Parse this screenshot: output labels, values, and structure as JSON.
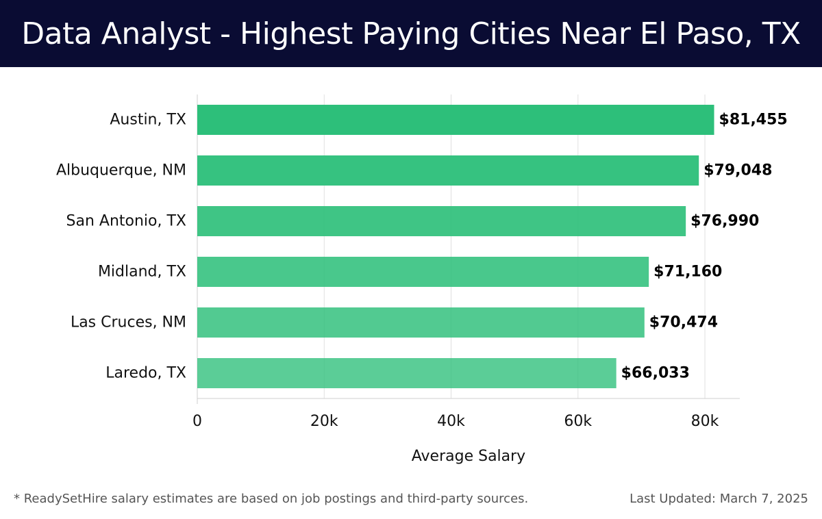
{
  "header": {
    "title": "Data Analyst - Highest Paying Cities Near El Paso, TX"
  },
  "colors": {
    "header_bg": "#0a0c33",
    "bar": "#2dbf7a",
    "grid": "#e0e0e0",
    "axis_text": "#111111",
    "value_text": "#000000"
  },
  "chart_data": {
    "type": "bar",
    "orientation": "horizontal",
    "categories": [
      "Austin, TX",
      "Albuquerque, NM",
      "San Antonio, TX",
      "Midland, TX",
      "Las Cruces, NM",
      "Laredo, TX"
    ],
    "values": [
      81455,
      79048,
      76990,
      71160,
      70474,
      66033
    ],
    "value_labels": [
      "$81,455",
      "$79,048",
      "$76,990",
      "$71,160",
      "$70,474",
      "$66,033"
    ],
    "title": "",
    "xlabel": "Average Salary",
    "ylabel": "",
    "xlim": [
      0,
      85500
    ],
    "xticks": [
      0,
      20000,
      40000,
      60000,
      80000
    ],
    "xtick_labels": [
      "0",
      "20k",
      "40k",
      "60k",
      "80k"
    ],
    "grid": true
  },
  "footer": {
    "note": "* ReadySetHire salary estimates are based on job postings and third-party sources.",
    "updated": "Last Updated: March 7, 2025"
  }
}
